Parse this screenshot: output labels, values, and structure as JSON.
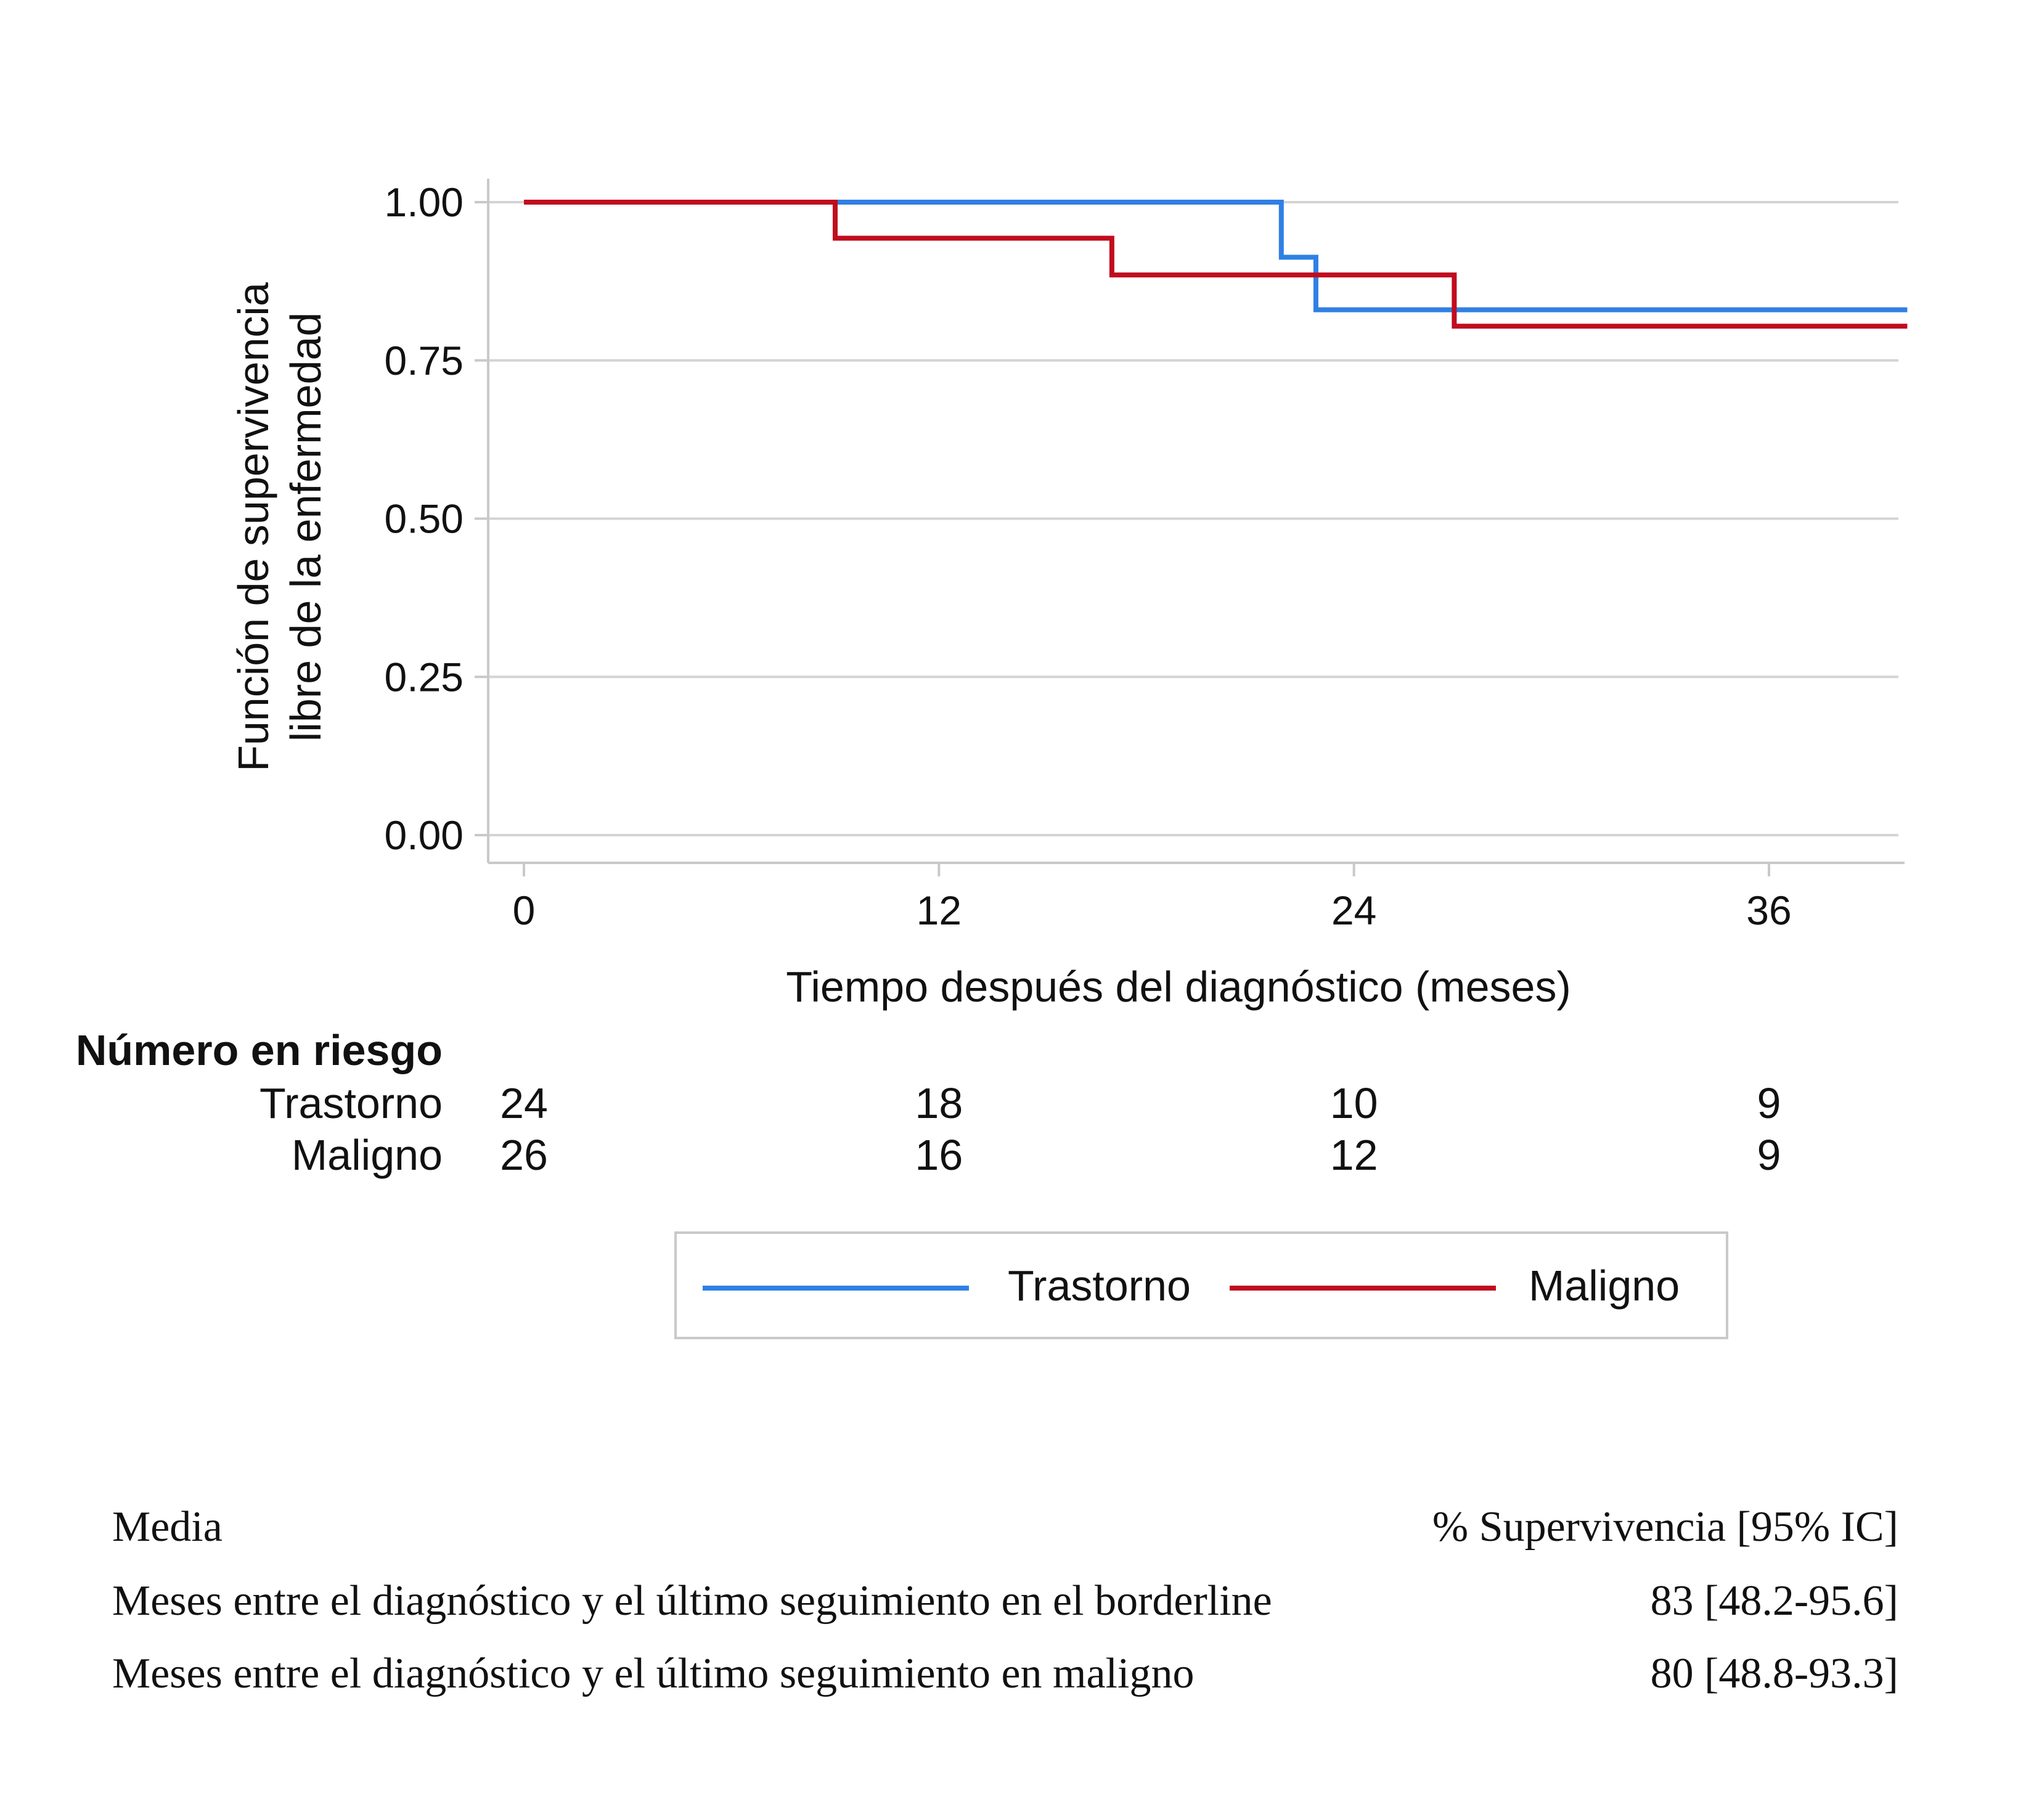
{
  "chart_data": {
    "type": "line",
    "subtype": "kaplan-meier-step",
    "xlabel": "Tiempo después del diagnóstico (meses)",
    "ylabel_lines": [
      "Función de supervivencia",
      "libre de la enfermedad"
    ],
    "xlim": [
      -1.1,
      40
    ],
    "ylim": [
      -0.04,
      1.04
    ],
    "xticks": [
      0,
      12,
      24,
      36
    ],
    "xtick_labels": [
      "0",
      "12",
      "24",
      "36"
    ],
    "yticks": [
      0,
      0.25,
      0.5,
      0.75,
      1
    ],
    "ytick_labels": [
      "0.00",
      "0.25",
      "0.50",
      "0.75",
      "1.00"
    ],
    "grid": true,
    "series": [
      {
        "name": "Trastorno",
        "color": "#2f80e4",
        "steps": [
          [
            0,
            1.0
          ],
          [
            21.9,
            0.913
          ],
          [
            22.9,
            0.83
          ]
        ],
        "x_end": 40
      },
      {
        "name": "Maligno",
        "color": "#c00d1e",
        "steps": [
          [
            0,
            1.0
          ],
          [
            9.0,
            0.943
          ],
          [
            17.0,
            0.885
          ],
          [
            26.9,
            0.804
          ]
        ],
        "x_end": 40
      }
    ],
    "legend_position": "bottom-center"
  },
  "risk_table": {
    "title": "Número en riesgo",
    "rows": [
      {
        "label": "Trastorno",
        "values": [
          "24",
          "18",
          "10",
          "9"
        ]
      },
      {
        "label": "Maligno",
        "values": [
          "26",
          "16",
          "12",
          "9"
        ]
      }
    ]
  },
  "summary_table": {
    "header_left": "Media",
    "header_right": "% Supervivencia [95% IC]",
    "rows": [
      {
        "label": "Meses entre el diagnóstico y el último seguimiento en el borderline",
        "value": "83 [48.2-95.6]"
      },
      {
        "label": "Meses entre el diagnóstico y el último seguimiento en maligno",
        "value": "80 [48.8-93.3]"
      }
    ]
  }
}
